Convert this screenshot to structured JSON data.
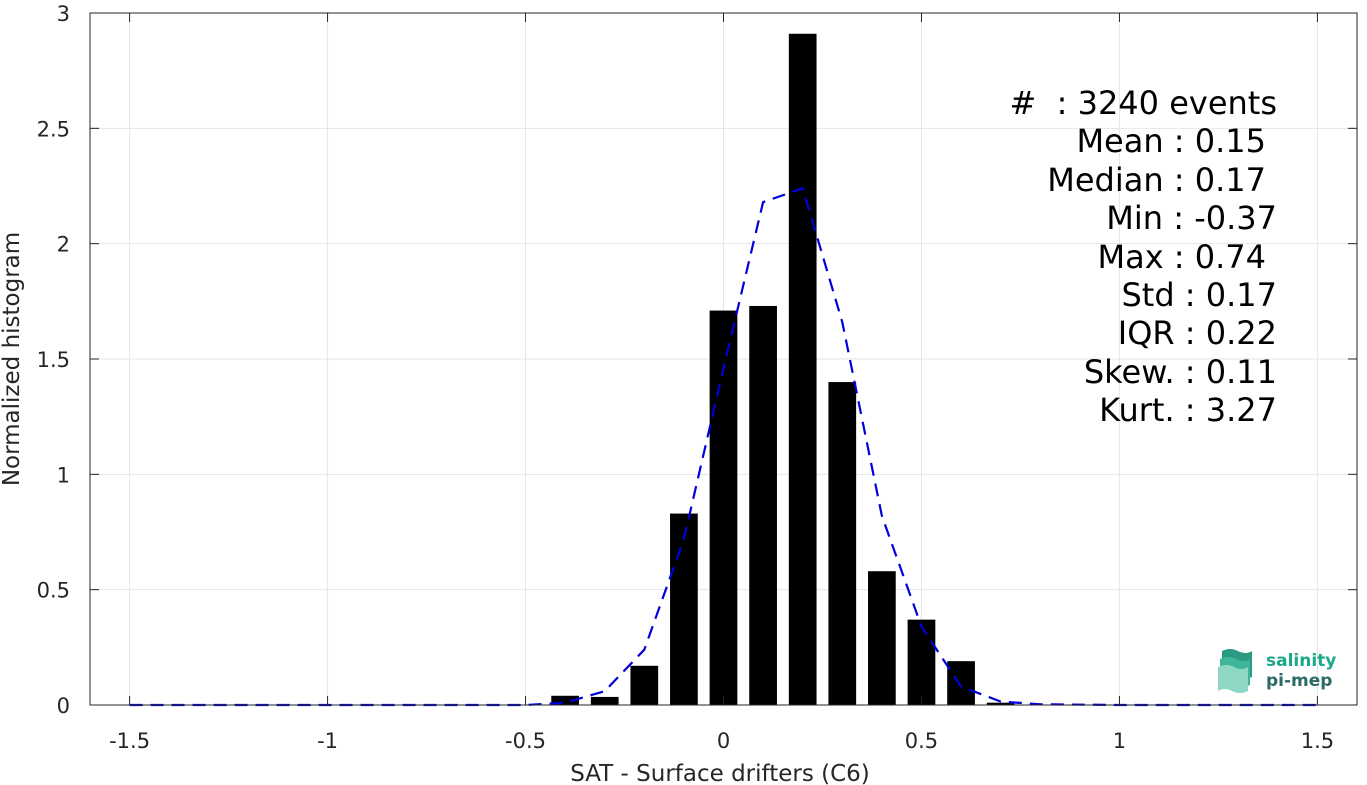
{
  "chart_data": {
    "type": "bar",
    "title": "",
    "xlabel": "SAT - Surface drifters (C6)",
    "ylabel": "Normalized histogram",
    "xlim": [
      -1.6,
      1.6
    ],
    "ylim": [
      0,
      3
    ],
    "xticks": [
      -1.5,
      -1,
      -0.5,
      0,
      0.5,
      1,
      1.5
    ],
    "xtick_labels": [
      "-1.5",
      "-1",
      "-0.5",
      "0",
      "0.5",
      "1",
      "1.5"
    ],
    "yticks": [
      0,
      0.5,
      1,
      1.5,
      2,
      2.5,
      3
    ],
    "ytick_labels": [
      "0",
      "0.5",
      "1",
      "1.5",
      "2",
      "2.5",
      "3"
    ],
    "grid": true,
    "bar_color": "#000000",
    "bar_width": 0.07,
    "bars": {
      "x": [
        -0.4,
        -0.3,
        -0.2,
        -0.1,
        0.0,
        0.1,
        0.2,
        0.3,
        0.4,
        0.5,
        0.6,
        0.7
      ],
      "values": [
        0.04,
        0.035,
        0.17,
        0.83,
        1.71,
        1.73,
        2.91,
        1.4,
        0.58,
        0.37,
        0.19,
        0.01
      ]
    },
    "fit_line": {
      "color": "#0000dd",
      "style": "dashed",
      "x": [
        -1.5,
        -1.0,
        -0.5,
        -0.4,
        -0.3,
        -0.2,
        -0.1,
        0.0,
        0.1,
        0.2,
        0.3,
        0.4,
        0.5,
        0.6,
        0.7,
        0.8,
        1.0,
        1.5
      ],
      "y": [
        0,
        0,
        0,
        0.01,
        0.06,
        0.24,
        0.72,
        1.46,
        2.18,
        2.24,
        1.66,
        0.82,
        0.34,
        0.08,
        0.015,
        0.003,
        0,
        0
      ]
    }
  },
  "stats": {
    "events": "#  : 3240 events",
    "mean": "Mean : 0.15",
    "median": "Median : 0.17",
    "min": "Min : -0.37",
    "max": "Max : 0.74",
    "std": "Std : 0.17",
    "iqr": "IQR : 0.22",
    "skew": "Skew. : 0.11",
    "kurt": "Kurt. : 3.27"
  },
  "logo": {
    "line1": "salinity",
    "line2": "pi-mep",
    "color": "#1aa88a"
  }
}
